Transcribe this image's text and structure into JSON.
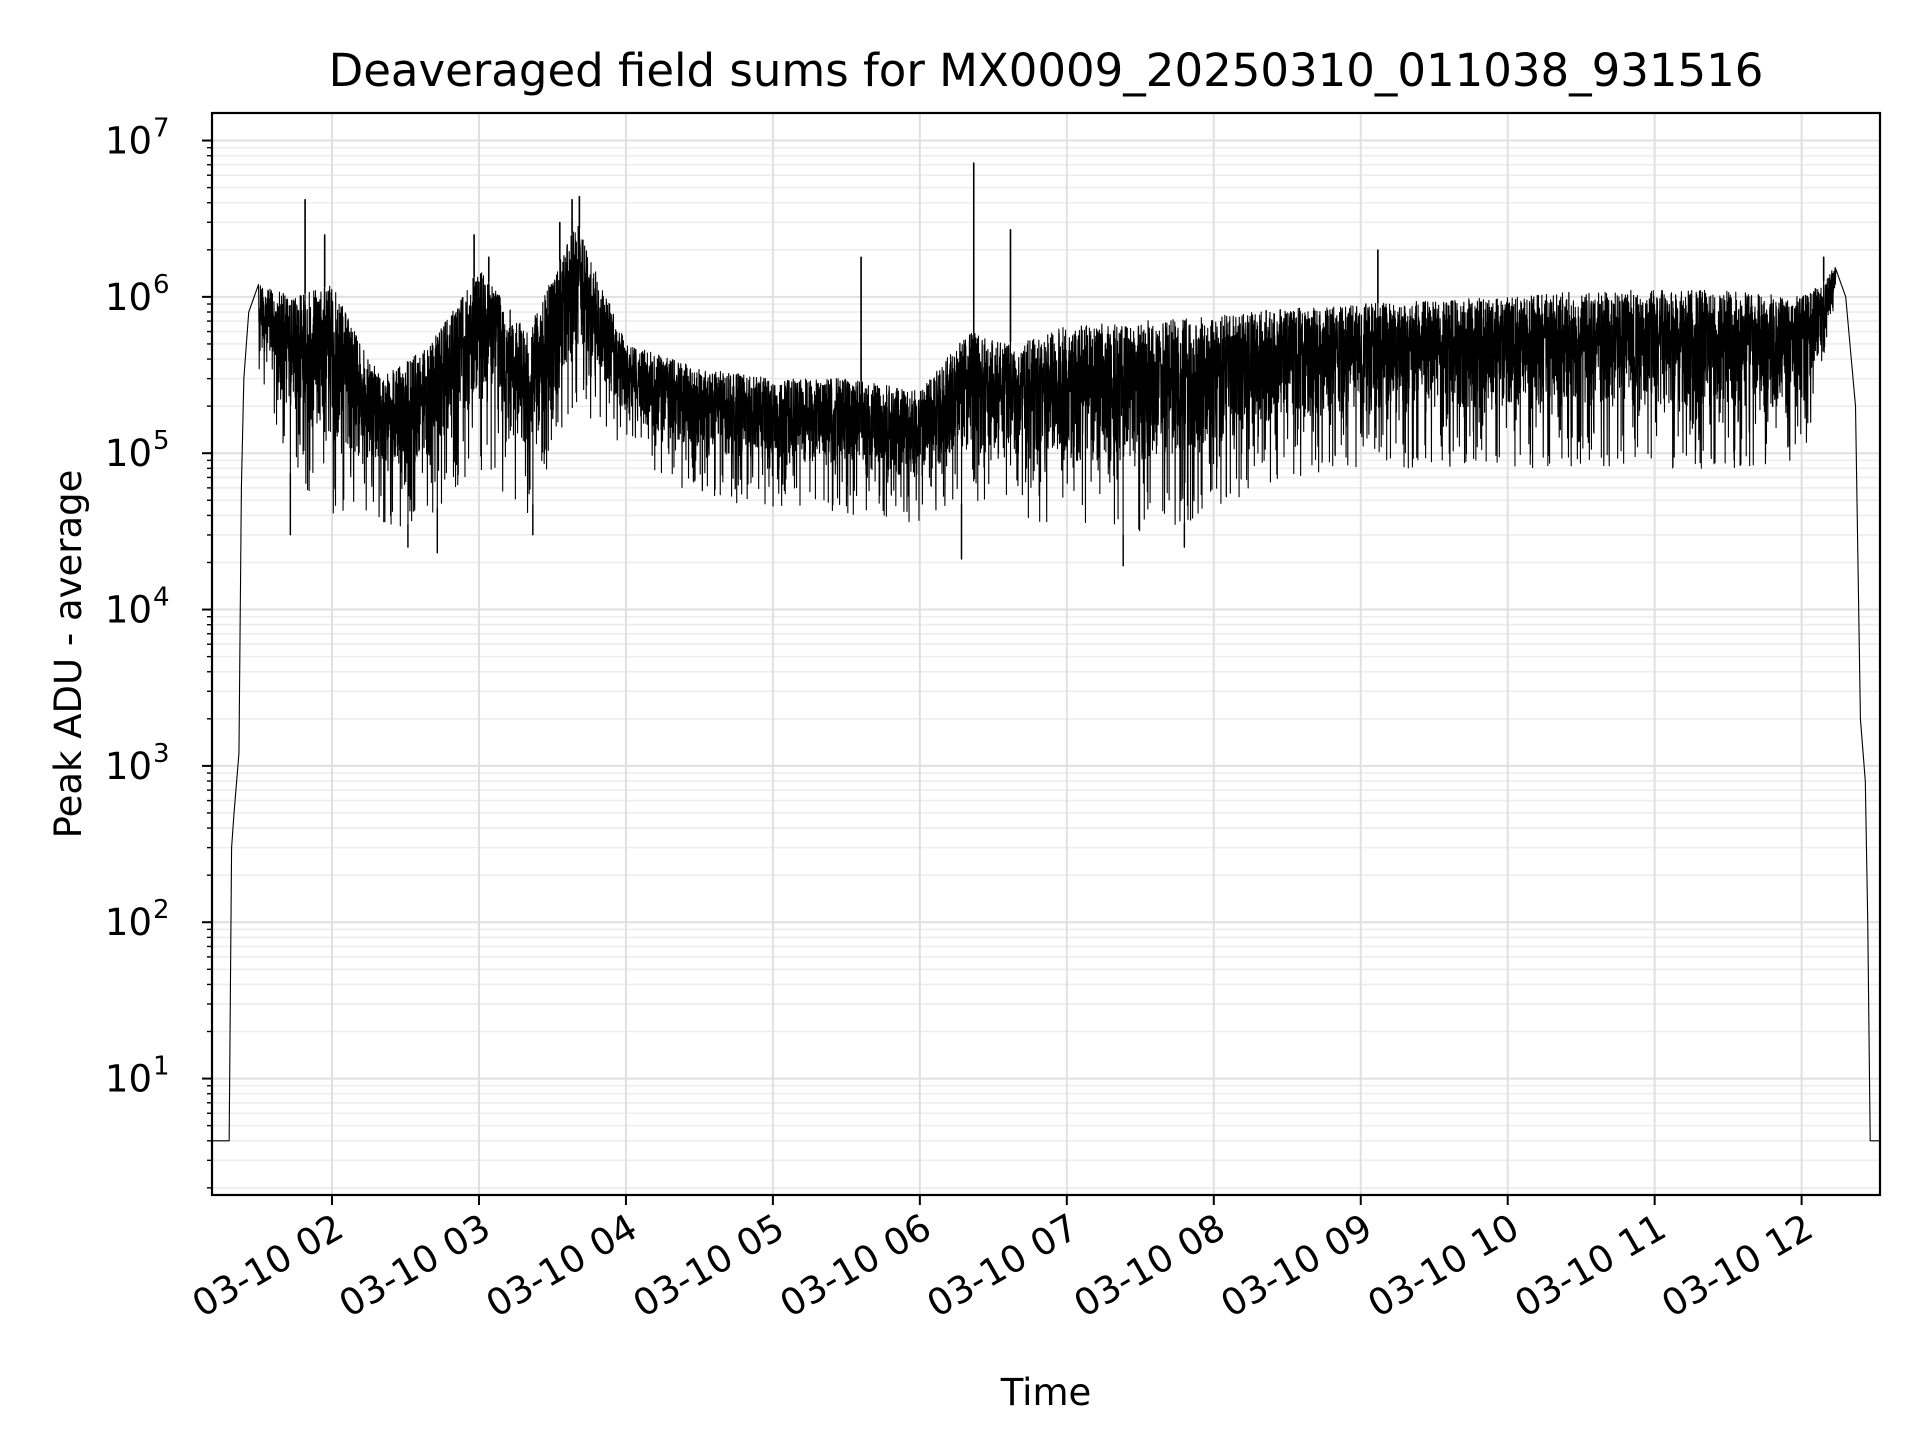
{
  "chart_data": {
    "type": "line",
    "title": "Deaveraged field sums for MX0009_20250310_011038_931516",
    "xlabel": "Time",
    "ylabel": "Peak ADU - average",
    "yscale": "log",
    "ylim": [
      1.8,
      15000000
    ],
    "xlim": [
      "2025-03-10 01:11",
      "2025-03-10 12:32"
    ],
    "grid": true,
    "x_ticks": [
      "03-10 02",
      "03-10 03",
      "03-10 04",
      "03-10 05",
      "03-10 06",
      "03-10 07",
      "03-10 08",
      "03-10 09",
      "03-10 10",
      "03-10 11",
      "03-10 12"
    ],
    "y_ticks": [
      {
        "base": "10",
        "exp": "1"
      },
      {
        "base": "10",
        "exp": "2"
      },
      {
        "base": "10",
        "exp": "3"
      },
      {
        "base": "10",
        "exp": "4"
      },
      {
        "base": "10",
        "exp": "5"
      },
      {
        "base": "10",
        "exp": "6"
      },
      {
        "base": "10",
        "exp": "7"
      }
    ],
    "series": [
      {
        "color": "#000000",
        "baseline": 4,
        "rise": [
          {
            "t": "01:11",
            "v": 4
          },
          {
            "t": "01:18",
            "v": 4
          },
          {
            "t": "01:19",
            "v": 300
          },
          {
            "t": "01:20",
            "v": 500
          },
          {
            "t": "01:22",
            "v": 1200
          },
          {
            "t": "01:23",
            "v": 60000
          },
          {
            "t": "01:24",
            "v": 300000
          },
          {
            "t": "01:26",
            "v": 800000
          },
          {
            "t": "01:30",
            "v": 1200000
          }
        ],
        "fall": [
          {
            "t": "12:14",
            "v": 1500000
          },
          {
            "t": "12:18",
            "v": 1000000
          },
          {
            "t": "12:22",
            "v": 200000
          },
          {
            "t": "12:24",
            "v": 2000
          },
          {
            "t": "12:26",
            "v": 800
          },
          {
            "t": "12:27",
            "v": 100
          },
          {
            "t": "12:28",
            "v": 4
          },
          {
            "t": "12:32",
            "v": 4
          }
        ],
        "envelope": [
          {
            "t": "01:30",
            "low": 300000,
            "high": 1200000
          },
          {
            "t": "01:45",
            "low": 60000,
            "high": 1000000
          },
          {
            "t": "02:00",
            "low": 40000,
            "high": 1200000
          },
          {
            "t": "02:20",
            "low": 30000,
            "high": 300000
          },
          {
            "t": "02:40",
            "low": 40000,
            "high": 500000
          },
          {
            "t": "03:00",
            "low": 80000,
            "high": 1500000
          },
          {
            "t": "03:20",
            "low": 40000,
            "high": 600000
          },
          {
            "t": "03:40",
            "low": 200000,
            "high": 3000000
          },
          {
            "t": "04:00",
            "low": 100000,
            "high": 500000
          },
          {
            "t": "04:30",
            "low": 50000,
            "high": 350000
          },
          {
            "t": "05:00",
            "low": 45000,
            "high": 300000
          },
          {
            "t": "05:30",
            "low": 40000,
            "high": 300000
          },
          {
            "t": "06:00",
            "low": 35000,
            "high": 250000
          },
          {
            "t": "06:20",
            "low": 50000,
            "high": 600000
          },
          {
            "t": "06:40",
            "low": 40000,
            "high": 500000
          },
          {
            "t": "07:00",
            "low": 30000,
            "high": 650000
          },
          {
            "t": "07:30",
            "low": 30000,
            "high": 700000
          },
          {
            "t": "08:00",
            "low": 40000,
            "high": 750000
          },
          {
            "t": "08:30",
            "low": 70000,
            "high": 850000
          },
          {
            "t": "09:00",
            "low": 80000,
            "high": 900000
          },
          {
            "t": "09:30",
            "low": 80000,
            "high": 950000
          },
          {
            "t": "10:00",
            "low": 80000,
            "high": 1000000
          },
          {
            "t": "10:30",
            "low": 80000,
            "high": 1100000
          },
          {
            "t": "11:00",
            "low": 80000,
            "high": 1100000
          },
          {
            "t": "11:30",
            "low": 80000,
            "high": 1100000
          },
          {
            "t": "12:00",
            "low": 80000,
            "high": 1000000
          },
          {
            "t": "12:08",
            "low": 300000,
            "high": 1200000
          },
          {
            "t": "12:14",
            "low": 1000000,
            "high": 1600000
          }
        ],
        "spikes": [
          {
            "t": "01:49",
            "v": 4200000
          },
          {
            "t": "01:57",
            "v": 2500000
          },
          {
            "t": "02:58",
            "v": 2500000
          },
          {
            "t": "03:04",
            "v": 1800000
          },
          {
            "t": "03:33",
            "v": 3000000
          },
          {
            "t": "03:38",
            "v": 4200000
          },
          {
            "t": "03:41",
            "v": 4400000
          },
          {
            "t": "05:36",
            "v": 1800000
          },
          {
            "t": "06:22",
            "v": 7200000
          },
          {
            "t": "06:37",
            "v": 2700000
          },
          {
            "t": "09:07",
            "v": 2000000
          },
          {
            "t": "12:09",
            "v": 1800000
          }
        ],
        "dips": [
          {
            "t": "01:43",
            "v": 30000
          },
          {
            "t": "02:31",
            "v": 25000
          },
          {
            "t": "02:43",
            "v": 23000
          },
          {
            "t": "03:22",
            "v": 30000
          },
          {
            "t": "06:17",
            "v": 21000
          },
          {
            "t": "07:23",
            "v": 19000
          },
          {
            "t": "07:48",
            "v": 25000
          }
        ]
      }
    ]
  }
}
